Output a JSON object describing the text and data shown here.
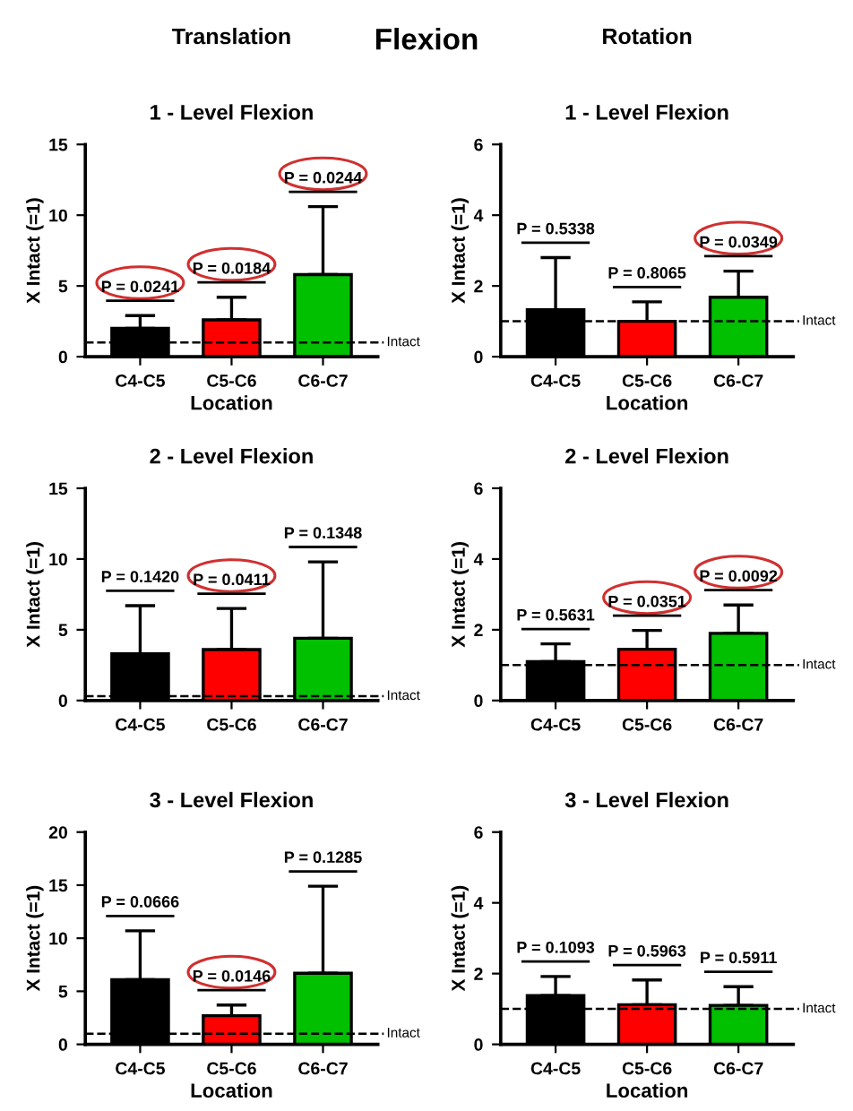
{
  "chart_data": [
    {
      "type": "bar",
      "subtitle": "Translation",
      "annotations": [
        "P = 0.0241",
        "P = 0.0184",
        "P = 0.0244",
        "Flexion"
      ],
      "title": "1 - Level Flexion",
      "xlabel": "Location",
      "ylabel": "X Intact (=1)",
      "categories": [
        "C4-C5",
        "C5-C6",
        "C6-C7"
      ],
      "values": [
        2.0,
        2.6,
        5.8
      ],
      "colors": [
        "#000000",
        "#ff0000",
        "#00c000"
      ],
      "errors": [
        [
          2.0,
          2.9
        ],
        [
          2.6,
          4.2
        ],
        [
          5.8,
          10.6
        ]
      ],
      "ylim": [
        0,
        15
      ],
      "yticks": [
        0,
        5,
        10,
        15
      ],
      "ref_lines": [
        {
          "axis": "y",
          "value": 1,
          "label": "Intact",
          "line_style": "dashed"
        }
      ]
    },
    {
      "type": "bar",
      "subtitle": "Rotation",
      "annotations": [
        "P = 0.5338",
        "P = 0.8065",
        "P = 0.0349"
      ],
      "title": "1 - Level Flexion",
      "xlabel": "Location",
      "ylabel": "X Intact (=1)",
      "categories": [
        "C4-C5",
        "C5-C6",
        "C6-C7"
      ],
      "values": [
        1.33,
        1.0,
        1.68
      ],
      "colors": [
        "#000000",
        "#ff0000",
        "#00c000"
      ],
      "errors": [
        [
          1.33,
          2.8
        ],
        [
          1.0,
          1.55
        ],
        [
          1.68,
          2.42
        ]
      ],
      "ylim": [
        0,
        6
      ],
      "yticks": [
        0,
        2,
        4,
        6
      ],
      "ref_lines": [
        {
          "axis": "y",
          "value": 1,
          "label": "Intact",
          "line_style": "dashed"
        }
      ]
    },
    {
      "type": "bar",
      "annotations": [
        "P = 0.1420",
        "P = 0.0411",
        "P = 0.1348"
      ],
      "title": "2 - Level Flexion",
      "ylabel": "X Intact (=1)",
      "categories": [
        "C4-C5",
        "C5-C6",
        "C6-C7"
      ],
      "values": [
        3.3,
        3.6,
        4.4
      ],
      "colors": [
        "#000000",
        "#ff0000",
        "#00c000"
      ],
      "errors": [
        [
          3.3,
          6.7
        ],
        [
          3.6,
          6.5
        ],
        [
          4.4,
          9.8
        ]
      ],
      "ylim": [
        0,
        15
      ],
      "yticks": [
        0,
        5,
        10,
        15
      ],
      "ref_lines": [
        {
          "axis": "y",
          "value": 0.3,
          "label": "Intact",
          "line_style": "dashed"
        }
      ]
    },
    {
      "type": "bar",
      "annotations": [
        "P = 0.5631",
        "P = 0.0351",
        "P = 0.0092"
      ],
      "title": "2 - Level Flexion",
      "ylabel": "X Intact (=1)",
      "categories": [
        "C4-C5",
        "C5-C6",
        "C6-C7"
      ],
      "values": [
        1.1,
        1.45,
        1.9
      ],
      "colors": [
        "#000000",
        "#ff0000",
        "#00c000"
      ],
      "errors": [
        [
          1.1,
          1.6
        ],
        [
          1.45,
          1.98
        ],
        [
          1.9,
          2.7
        ]
      ],
      "ylim": [
        0,
        6
      ],
      "yticks": [
        0,
        2,
        4,
        6
      ],
      "ref_lines": [
        {
          "axis": "y",
          "value": 1,
          "label": "Intact",
          "line_style": "dashed"
        }
      ]
    },
    {
      "type": "bar",
      "annotations": [
        "P = 0.0666",
        "P = 0.0146",
        "P = 0.1285"
      ],
      "title": "3 - Level Flexion",
      "xlabel": "Location",
      "ylabel": "X Intact (=1)",
      "categories": [
        "C4-C5",
        "C5-C6",
        "C6-C7"
      ],
      "values": [
        6.1,
        2.7,
        6.7
      ],
      "colors": [
        "#000000",
        "#ff0000",
        "#00c000"
      ],
      "errors": [
        [
          6.1,
          10.7
        ],
        [
          2.7,
          3.7
        ],
        [
          6.7,
          14.9
        ]
      ],
      "ylim": [
        0,
        20
      ],
      "yticks": [
        0,
        5,
        10,
        15,
        20
      ],
      "ref_lines": [
        {
          "axis": "y",
          "value": 1,
          "label": "Intact",
          "line_style": "dashed"
        }
      ]
    },
    {
      "type": "bar",
      "annotations": [
        "P = 0.1093",
        "P = 0.5963",
        "P = 0.5911"
      ],
      "title": "3 - Level Flexion",
      "xlabel": "Location",
      "ylabel": "X Intact (=1)",
      "categories": [
        "C4-C5",
        "C5-C6",
        "C6-C7"
      ],
      "values": [
        1.38,
        1.12,
        1.1
      ],
      "colors": [
        "#000000",
        "#ff0000",
        "#00c000"
      ],
      "errors": [
        [
          1.38,
          1.92
        ],
        [
          1.12,
          1.82
        ],
        [
          1.1,
          1.63
        ]
      ],
      "ylim": [
        0,
        6
      ],
      "yticks": [
        0,
        2,
        4,
        6
      ],
      "ref_lines": [
        {
          "axis": "y",
          "value": 1,
          "label": "Intact",
          "line_style": "dashed"
        }
      ]
    }
  ]
}
